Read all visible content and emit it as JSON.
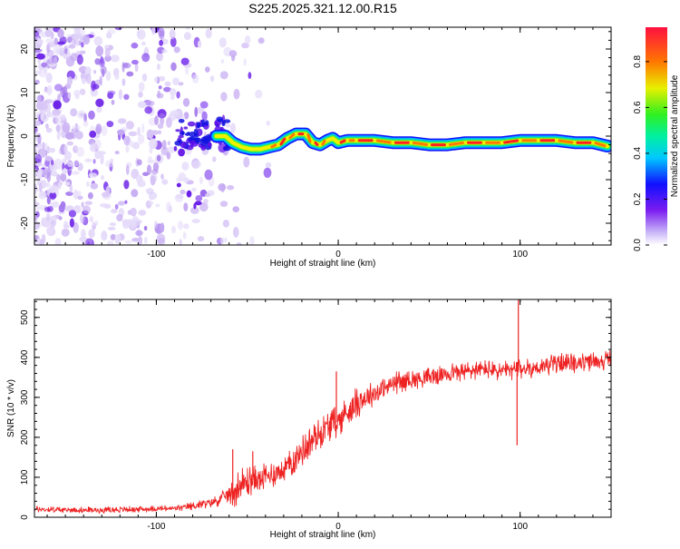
{
  "title": "S225.2025.321.12.00.R15",
  "colors": {
    "snr_line": "#ee2222",
    "spec_low": "#d8c6f7",
    "spec_mid": "#6a1cf0",
    "track_core": "#ff2020",
    "track_edge": "#1020ff"
  },
  "chart_data": [
    {
      "type": "heatmap",
      "xlabel": "Height of straight line (km)",
      "ylabel": "Frequency (Hz)",
      "xlim": [
        -167,
        150
      ],
      "ylim": [
        -25,
        25
      ],
      "x_ticks": [
        -100,
        0,
        100
      ],
      "x_tick_labels": [
        "-100",
        "0",
        "100"
      ],
      "y_ticks": [
        -20,
        -10,
        0,
        10,
        20
      ],
      "y_tick_labels": [
        "-20",
        "-10",
        "0",
        "10",
        "20"
      ],
      "noise_region_x": [
        -167,
        -60
      ],
      "ridge": {
        "x": [
          -67,
          -62,
          -58,
          -53,
          -48,
          -43,
          -38,
          -33,
          -28,
          -23,
          -18,
          -14,
          -10,
          -6,
          -3,
          0,
          5,
          10,
          20,
          30,
          40,
          50,
          60,
          70,
          80,
          90,
          100,
          110,
          120,
          130,
          140,
          148
        ],
        "freq": [
          0,
          0,
          -1.5,
          -2.5,
          -3,
          -3,
          -2.5,
          -2,
          -0.5,
          0.5,
          0.5,
          -1.5,
          -2,
          -1,
          -0.5,
          -1.5,
          -1,
          -1,
          -1,
          -1.5,
          -1.5,
          -2,
          -2,
          -1.5,
          -1.5,
          -1.5,
          -1,
          -1,
          -1,
          -1.5,
          -1.5,
          -2.3
        ]
      },
      "colorbar": {
        "label": "Normalized spectral amplitude",
        "range": [
          0.0,
          0.95
        ],
        "ticks": [
          0.0,
          0.2,
          0.4,
          0.6,
          0.8
        ],
        "tick_labels": [
          "0.0",
          "0.2",
          "0.4",
          "0.6",
          "0.8"
        ]
      }
    },
    {
      "type": "line",
      "xlabel": "Height of straight line (km)",
      "ylabel": "SNR (10 * v/v)",
      "xlim": [
        -167,
        150
      ],
      "ylim": [
        0,
        545
      ],
      "x_ticks": [
        -100,
        0,
        100
      ],
      "x_tick_labels": [
        "-100",
        "0",
        "100"
      ],
      "y_ticks": [
        0,
        100,
        200,
        300,
        400,
        500
      ],
      "y_tick_labels": [
        "0",
        "100",
        "200",
        "300",
        "400",
        "500"
      ],
      "series": [
        {
          "name": "SNR",
          "x": [
            -167,
            -150,
            -130,
            -110,
            -90,
            -80,
            -72,
            -66,
            -62,
            -58,
            -55,
            -50,
            -45,
            -40,
            -35,
            -30,
            -25,
            -20,
            -15,
            -10,
            -5,
            0,
            5,
            10,
            15,
            20,
            25,
            30,
            40,
            50,
            60,
            70,
            80,
            90,
            100,
            110,
            120,
            130,
            140,
            150
          ],
          "y": [
            20,
            18,
            18,
            20,
            22,
            28,
            35,
            42,
            55,
            60,
            75,
            90,
            95,
            100,
            110,
            120,
            140,
            165,
            190,
            210,
            230,
            240,
            265,
            285,
            300,
            310,
            320,
            335,
            345,
            350,
            360,
            365,
            370,
            365,
            370,
            375,
            385,
            385,
            390,
            395
          ],
          "noise_amplitude": [
            8,
            8,
            8,
            8,
            8,
            10,
            12,
            15,
            18,
            35,
            45,
            40,
            35,
            35,
            35,
            35,
            35,
            40,
            40,
            40,
            40,
            40,
            40,
            40,
            35,
            30,
            30,
            30,
            25,
            25,
            25,
            25,
            25,
            25,
            25,
            25,
            25,
            25,
            25,
            25
          ]
        }
      ],
      "spikes": [
        {
          "x": -1,
          "y": 365
        },
        {
          "x": 99,
          "y": 545
        },
        {
          "x": 98.3,
          "y": 180
        },
        {
          "x": -58,
          "y": 170
        },
        {
          "x": -47,
          "y": 165
        }
      ]
    }
  ]
}
